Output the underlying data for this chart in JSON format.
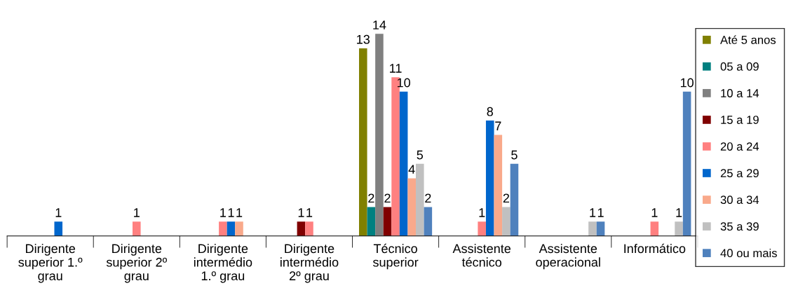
{
  "chart_data": {
    "type": "bar",
    "data_labels": true,
    "legend": "right",
    "grid": false,
    "categories": [
      "Dirigente superior 1.º grau",
      "Dirigente superior 2º grau",
      "Dirigente intermédio 1.º grau",
      "Dirigente intermédio 2º grau",
      "Técnico superior",
      "Assistente técnico",
      "Assistente operacional",
      "Informático"
    ],
    "series": [
      {
        "name": "Até 5 anos",
        "color": "#808000",
        "values": [
          null,
          null,
          null,
          null,
          13,
          null,
          null,
          null
        ]
      },
      {
        "name": "05 a 09",
        "color": "#008080",
        "values": [
          null,
          null,
          null,
          null,
          2,
          null,
          null,
          null
        ]
      },
      {
        "name": "10 a 14",
        "color": "#808080",
        "values": [
          null,
          null,
          null,
          null,
          14,
          null,
          null,
          null
        ]
      },
      {
        "name": "15 a 19",
        "color": "#800000",
        "values": [
          null,
          null,
          null,
          1,
          2,
          null,
          null,
          null
        ]
      },
      {
        "name": "20 a 24",
        "color": "#ff8080",
        "values": [
          null,
          1,
          1,
          1,
          11,
          1,
          null,
          1
        ]
      },
      {
        "name": "25 a 29",
        "color": "#0066cc",
        "values": [
          1,
          null,
          1,
          null,
          10,
          8,
          null,
          null
        ]
      },
      {
        "name": "30 a 34",
        "color": "#f9a98b",
        "values": [
          null,
          null,
          1,
          null,
          4,
          7,
          null,
          null
        ]
      },
      {
        "name": "35 a 39",
        "color": "#c0c0c0",
        "values": [
          null,
          null,
          null,
          null,
          5,
          2,
          1,
          1
        ]
      },
      {
        "name": "40 ou mais",
        "color": "#4f81bd",
        "values": [
          null,
          null,
          null,
          null,
          2,
          5,
          1,
          10
        ]
      }
    ]
  }
}
